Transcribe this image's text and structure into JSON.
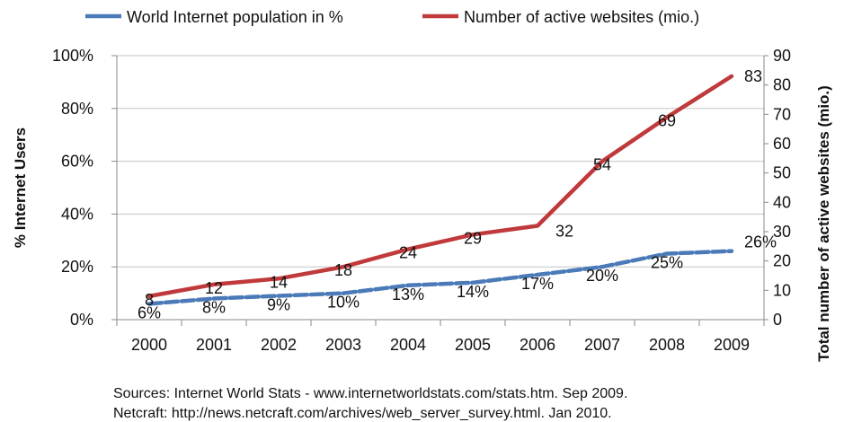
{
  "chart_data": {
    "type": "line",
    "categories": [
      "2000",
      "2001",
      "2002",
      "2003",
      "2004",
      "2005",
      "2006",
      "2007",
      "2008",
      "2009"
    ],
    "series": [
      {
        "name": "World Internet population in %",
        "axis": "left",
        "color": "#4a7ab8",
        "values": [
          6,
          8,
          9,
          10,
          13,
          14,
          17,
          20,
          25,
          26
        ],
        "labels": [
          "6%",
          "8%",
          "9%",
          "10%",
          "13%",
          "14%",
          "17%",
          "20%",
          "25%",
          "26%"
        ]
      },
      {
        "name": "Number of active websites (mio.)",
        "axis": "right",
        "color": "#c0393b",
        "values": [
          8,
          12,
          14,
          18,
          24,
          29,
          32,
          54,
          69,
          83
        ],
        "labels": [
          "8",
          "12",
          "14",
          "18",
          "24",
          "29",
          "32",
          "54",
          "69",
          "83"
        ]
      }
    ],
    "y_left": {
      "label": "% Internet Users",
      "ylim": [
        0,
        100
      ],
      "ticks": [
        "0%",
        "20%",
        "40%",
        "60%",
        "80%",
        "100%"
      ]
    },
    "y_right": {
      "label": "Total number of active websites (mio.)",
      "ylim": [
        0,
        90
      ],
      "ticks": [
        "0",
        "10",
        "20",
        "30",
        "40",
        "50",
        "60",
        "70",
        "80",
        "90"
      ]
    },
    "grid": true,
    "legend": "top",
    "source_lines": [
      "Sources: Internet World Stats - www.internetworldstats.com/stats.htm. Sep 2009.",
      "Netcraft: http://news.netcraft.com/archives/web_server_survey.html. Jan 2010."
    ]
  }
}
